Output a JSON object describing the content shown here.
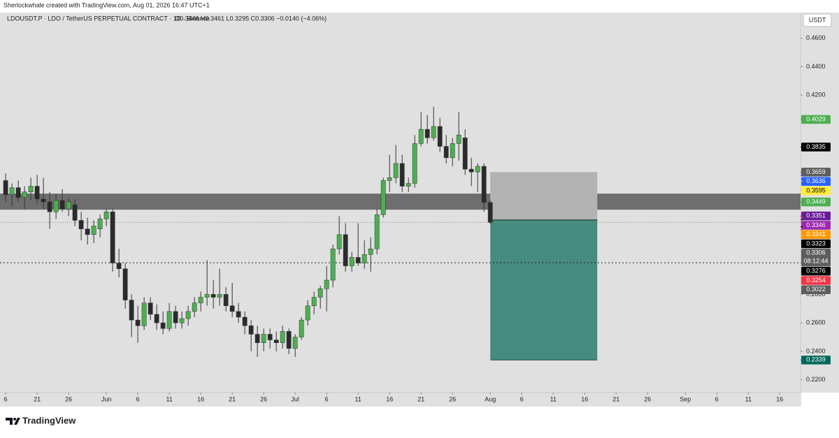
{
  "credit": "Sherlockwhale created with TradingView.com, Aug 01, 2026 16:47 UTC+1",
  "brand": "TradingView",
  "currency": "USDT",
  "countdown": "08:12:44",
  "chart_data": {
    "type": "candlestick",
    "title": "LDOUSDT.P · LDO / TetherUS PERPETUAL CONTRACT · 1D · Binance",
    "subtitle": "O0.3446 H0.3461 L0.3295 C0.3306 −0.0140 (−4.06%)",
    "up_color": "#4caf50",
    "down_color": "#2b2b2b",
    "wick_color": "#333333",
    "xlim": [
      -0.9,
      126.3
    ],
    "ylim": [
      0.211,
      0.478
    ],
    "grid": false,
    "xticks": [
      {
        "value": 0,
        "label": "6"
      },
      {
        "value": 5,
        "label": "21"
      },
      {
        "value": 10,
        "label": "26"
      },
      {
        "value": 16,
        "label": "Jun"
      },
      {
        "value": 21,
        "label": "6"
      },
      {
        "value": 26,
        "label": "11"
      },
      {
        "value": 31,
        "label": "16"
      },
      {
        "value": 36,
        "label": "21"
      },
      {
        "value": 41,
        "label": "26"
      },
      {
        "value": 46,
        "label": "Jul"
      },
      {
        "value": 51,
        "label": "6"
      },
      {
        "value": 56,
        "label": "11"
      },
      {
        "value": 61,
        "label": "16"
      },
      {
        "value": 66,
        "label": "21"
      },
      {
        "value": 71,
        "label": "26"
      },
      {
        "value": 77,
        "label": "Aug"
      },
      {
        "value": 82,
        "label": "6"
      },
      {
        "value": 87,
        "label": "11"
      },
      {
        "value": 92,
        "label": "16"
      },
      {
        "value": 97,
        "label": "21"
      },
      {
        "value": 102,
        "label": "26"
      },
      {
        "value": 108,
        "label": "Sep"
      },
      {
        "value": 113,
        "label": "6"
      },
      {
        "value": 118,
        "label": "11"
      },
      {
        "value": 123,
        "label": "16"
      }
    ],
    "yticks": [
      {
        "value": 0.22,
        "label": "0.2200"
      },
      {
        "value": 0.24,
        "label": "0.2400"
      },
      {
        "value": 0.26,
        "label": "0.2600"
      },
      {
        "value": 0.28,
        "label": "0.2800"
      },
      {
        "value": 0.42,
        "label": "0.4200"
      },
      {
        "value": 0.44,
        "label": "0.4400"
      },
      {
        "value": 0.46,
        "label": "0.4600"
      }
    ],
    "x": [
      0,
      1,
      2,
      3,
      4,
      5,
      6,
      7,
      8,
      9,
      10,
      11,
      12,
      13,
      14,
      15,
      16,
      17,
      18,
      19,
      20,
      21,
      22,
      23,
      24,
      25,
      26,
      27,
      28,
      29,
      30,
      31,
      32,
      33,
      34,
      35,
      36,
      37,
      38,
      39,
      40,
      41,
      42,
      43,
      44,
      45,
      46,
      47,
      48,
      49,
      50,
      51,
      52,
      53,
      54,
      55,
      56,
      57,
      58,
      59,
      60,
      61,
      62,
      63,
      64,
      65,
      66,
      67,
      68,
      69,
      70,
      71,
      72,
      73,
      74,
      75,
      76,
      77
    ],
    "open": [
      0.36,
      0.35,
      0.355,
      0.348,
      0.352,
      0.356,
      0.347,
      0.345,
      0.338,
      0.346,
      0.34,
      0.343,
      0.332,
      0.326,
      0.322,
      0.326,
      0.333,
      0.338,
      0.302,
      0.298,
      0.276,
      0.262,
      0.258,
      0.274,
      0.266,
      0.26,
      0.256,
      0.268,
      0.26,
      0.263,
      0.268,
      0.274,
      0.278,
      0.28,
      0.278,
      0.28,
      0.272,
      0.268,
      0.264,
      0.258,
      0.252,
      0.246,
      0.252,
      0.248,
      0.246,
      0.254,
      0.242,
      0.25,
      0.262,
      0.272,
      0.278,
      0.284,
      0.29,
      0.312,
      0.322,
      0.3,
      0.306,
      0.302,
      0.308,
      0.312,
      0.336,
      0.36,
      0.362,
      0.372,
      0.356,
      0.358,
      0.386,
      0.396,
      0.39,
      0.398,
      0.384,
      0.376,
      0.386,
      0.39,
      0.368,
      0.366,
      0.37,
      0.3446
    ],
    "high": [
      0.365,
      0.358,
      0.36,
      0.356,
      0.362,
      0.364,
      0.362,
      0.352,
      0.35,
      0.354,
      0.348,
      0.347,
      0.338,
      0.334,
      0.332,
      0.336,
      0.34,
      0.34,
      0.312,
      0.302,
      0.28,
      0.272,
      0.278,
      0.278,
      0.273,
      0.268,
      0.274,
      0.272,
      0.268,
      0.272,
      0.278,
      0.282,
      0.304,
      0.29,
      0.298,
      0.285,
      0.288,
      0.274,
      0.268,
      0.262,
      0.258,
      0.256,
      0.256,
      0.254,
      0.258,
      0.256,
      0.252,
      0.264,
      0.276,
      0.282,
      0.286,
      0.3,
      0.315,
      0.335,
      0.33,
      0.31,
      0.33,
      0.318,
      0.32,
      0.34,
      0.362,
      0.378,
      0.385,
      0.378,
      0.362,
      0.392,
      0.408,
      0.406,
      0.412,
      0.404,
      0.392,
      0.39,
      0.408,
      0.396,
      0.376,
      0.372,
      0.372,
      0.3461
    ],
    "low": [
      0.345,
      0.342,
      0.345,
      0.34,
      0.346,
      0.343,
      0.34,
      0.326,
      0.333,
      0.338,
      0.335,
      0.328,
      0.318,
      0.315,
      0.316,
      0.32,
      0.328,
      0.296,
      0.292,
      0.27,
      0.25,
      0.246,
      0.255,
      0.262,
      0.255,
      0.252,
      0.254,
      0.256,
      0.256,
      0.258,
      0.264,
      0.268,
      0.272,
      0.27,
      0.272,
      0.268,
      0.264,
      0.26,
      0.252,
      0.24,
      0.236,
      0.24,
      0.242,
      0.24,
      0.242,
      0.238,
      0.236,
      0.248,
      0.258,
      0.266,
      0.27,
      0.268,
      0.285,
      0.308,
      0.296,
      0.296,
      0.3,
      0.298,
      0.296,
      0.308,
      0.334,
      0.352,
      0.358,
      0.352,
      0.352,
      0.355,
      0.384,
      0.386,
      0.388,
      0.38,
      0.372,
      0.37,
      0.374,
      0.364,
      0.356,
      0.352,
      0.338,
      0.3295
    ],
    "close": [
      0.35,
      0.355,
      0.348,
      0.352,
      0.356,
      0.347,
      0.345,
      0.338,
      0.346,
      0.34,
      0.345,
      0.332,
      0.326,
      0.322,
      0.328,
      0.333,
      0.338,
      0.302,
      0.298,
      0.276,
      0.262,
      0.258,
      0.274,
      0.266,
      0.26,
      0.256,
      0.268,
      0.26,
      0.263,
      0.268,
      0.274,
      0.278,
      0.28,
      0.278,
      0.28,
      0.272,
      0.268,
      0.264,
      0.258,
      0.252,
      0.246,
      0.252,
      0.248,
      0.246,
      0.254,
      0.242,
      0.25,
      0.262,
      0.272,
      0.278,
      0.284,
      0.29,
      0.312,
      0.322,
      0.3,
      0.306,
      0.302,
      0.308,
      0.312,
      0.336,
      0.36,
      0.362,
      0.372,
      0.356,
      0.358,
      0.386,
      0.396,
      0.39,
      0.398,
      0.384,
      0.376,
      0.386,
      0.392,
      0.368,
      0.366,
      0.37,
      0.3446,
      0.3306
    ],
    "zone": [
      0.3395,
      0.3508
    ],
    "position": {
      "x": [
        77,
        94
      ],
      "entry": 0.3323,
      "stop": 0.3659,
      "target": 0.2339,
      "entry_color": "#000000",
      "stop_color": "#5d5d5d",
      "target_color": "#00695c"
    },
    "price_labels": [
      {
        "value": 0.4029,
        "color": "#4caf50"
      },
      {
        "value": 0.3835,
        "color": "#000000"
      },
      {
        "value": 0.3636,
        "color": "#2962ff"
      },
      {
        "value": 0.3595,
        "color": "#ffeb3b"
      },
      {
        "value": 0.3449,
        "color": "#4caf50"
      },
      {
        "value": 0.3351,
        "color": "#6a1b9a"
      },
      {
        "value": 0.3346,
        "color": "#9c27b0"
      },
      {
        "value": 0.3341,
        "color": "#ff9800"
      },
      {
        "value": 0.3306,
        "color": "#5d5d5d"
      },
      {
        "value": 0.3276,
        "color": "#000000"
      },
      {
        "value": 0.3254,
        "color": "#f23645"
      },
      {
        "value": 0.3022,
        "color": "#5d5d5d"
      }
    ],
    "current_price": 0.3306,
    "dotted_level": 0.3022
  }
}
